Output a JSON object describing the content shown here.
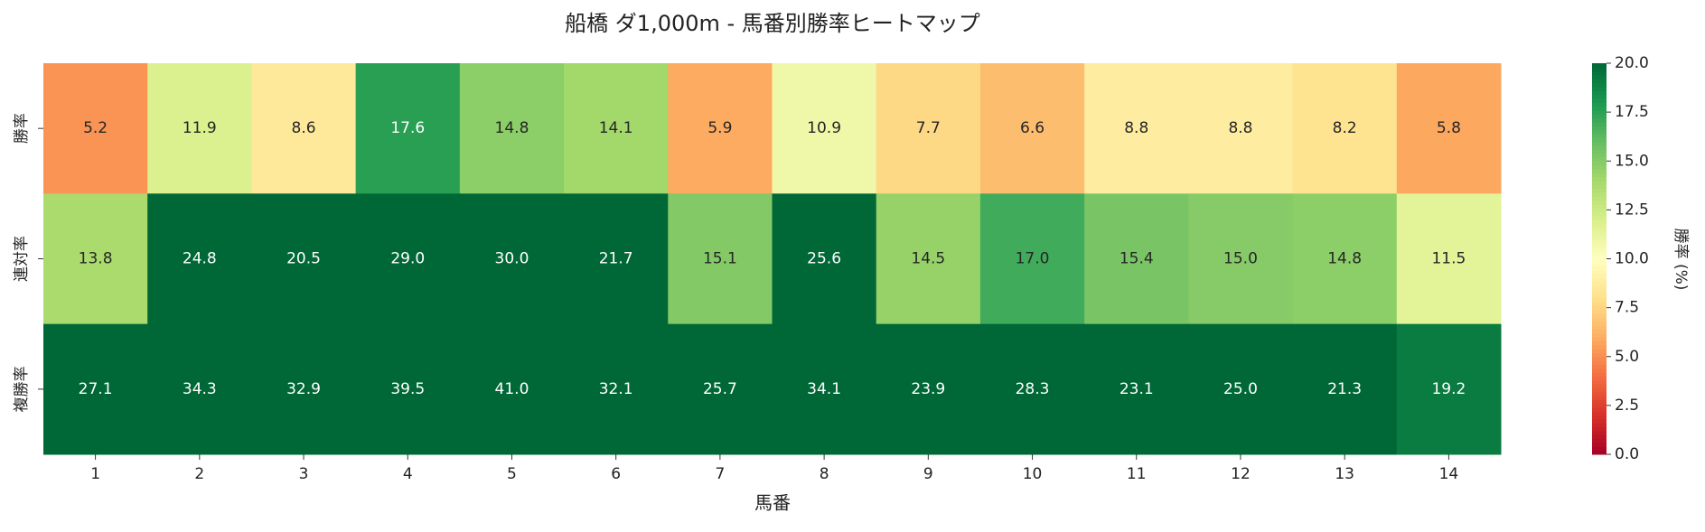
{
  "chart_data": {
    "type": "heatmap",
    "title": "船橋 ダ1,000m - 馬番別勝率ヒートマップ",
    "xlabel": "馬番",
    "categories": [
      "1",
      "2",
      "3",
      "4",
      "5",
      "6",
      "7",
      "8",
      "9",
      "10",
      "11",
      "12",
      "13",
      "14"
    ],
    "rows": [
      "勝率",
      "連対率",
      "複勝率"
    ],
    "values": [
      [
        5.2,
        11.9,
        8.6,
        17.6,
        14.8,
        14.1,
        5.9,
        10.9,
        7.7,
        6.6,
        8.8,
        8.8,
        8.2,
        5.8
      ],
      [
        13.8,
        24.8,
        20.5,
        29.0,
        30.0,
        21.7,
        15.1,
        25.6,
        14.5,
        17.0,
        15.4,
        15.0,
        14.8,
        11.5
      ],
      [
        27.1,
        34.3,
        32.9,
        39.5,
        41.0,
        32.1,
        25.7,
        34.1,
        23.9,
        28.3,
        23.1,
        25.0,
        21.3,
        19.2
      ]
    ],
    "value_labels": [
      [
        "5.2",
        "11.9",
        "8.6",
        "17.6",
        "14.8",
        "14.1",
        "5.9",
        "10.9",
        "7.7",
        "6.6",
        "8.8",
        "8.8",
        "8.2",
        "5.8"
      ],
      [
        "13.8",
        "24.8",
        "20.5",
        "29.0",
        "30.0",
        "21.7",
        "15.1",
        "25.6",
        "14.5",
        "17.0",
        "15.4",
        "15.0",
        "14.8",
        "11.5"
      ],
      [
        "27.1",
        "34.3",
        "32.9",
        "39.5",
        "41.0",
        "32.1",
        "25.7",
        "34.1",
        "23.9",
        "28.3",
        "23.1",
        "25.0",
        "21.3",
        "19.2"
      ]
    ],
    "colormap": "RdYlGn",
    "clim": [
      0,
      20
    ],
    "cticks": [
      {
        "value": 0,
        "label": "0.0"
      },
      2.5,
      {
        "value": 5,
        "label": "5.0"
      },
      7.5,
      {
        "value": 10,
        "label": "10.0"
      },
      12.5,
      {
        "value": 15,
        "label": "15.0"
      },
      17.5,
      {
        "value": 20,
        "label": "20.0"
      }
    ],
    "colorbar_label": "勝率 (%)"
  }
}
